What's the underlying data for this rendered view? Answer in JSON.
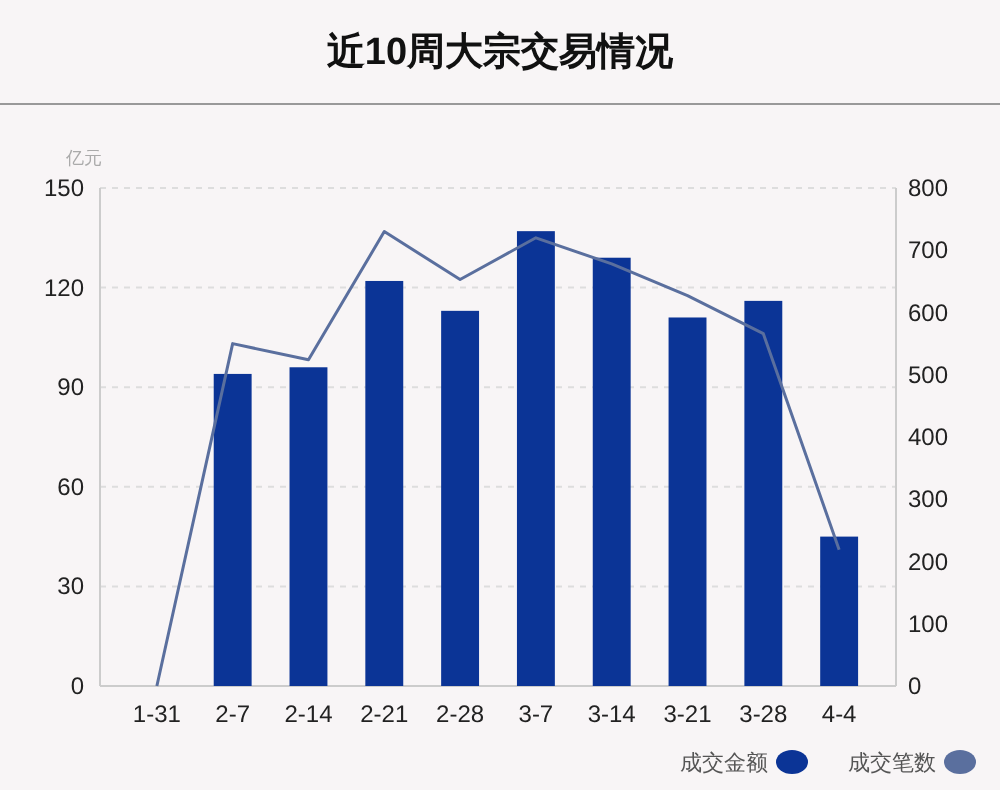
{
  "chart_data": {
    "type": "bar",
    "title": "近10周大宗交易情况",
    "ylabel": "亿元",
    "categories": [
      "1-31",
      "2-7",
      "2-14",
      "2-21",
      "2-28",
      "3-7",
      "3-14",
      "3-21",
      "3-28",
      "4-4"
    ],
    "series": [
      {
        "name": "成交金额",
        "color": "#0b3496",
        "values": [
          0,
          94,
          96,
          122,
          113,
          137,
          129,
          111,
          116,
          45
        ]
      },
      {
        "name": "成交笔数",
        "type": "line",
        "axis": "y2",
        "color": "#5a6f9e",
        "values": [
          0,
          550,
          524,
          730,
          653,
          720,
          678,
          627,
          566,
          219
        ]
      }
    ],
    "ylim": [
      0,
      150
    ],
    "yticks": [
      0,
      30,
      60,
      90,
      120,
      150
    ],
    "y2lim": [
      0,
      800
    ],
    "y2ticks": [
      0,
      100,
      200,
      300,
      400,
      500,
      600,
      700,
      800
    ],
    "grid": "y",
    "legend": "bottom right",
    "marker": "none",
    "line_style": "solid"
  }
}
